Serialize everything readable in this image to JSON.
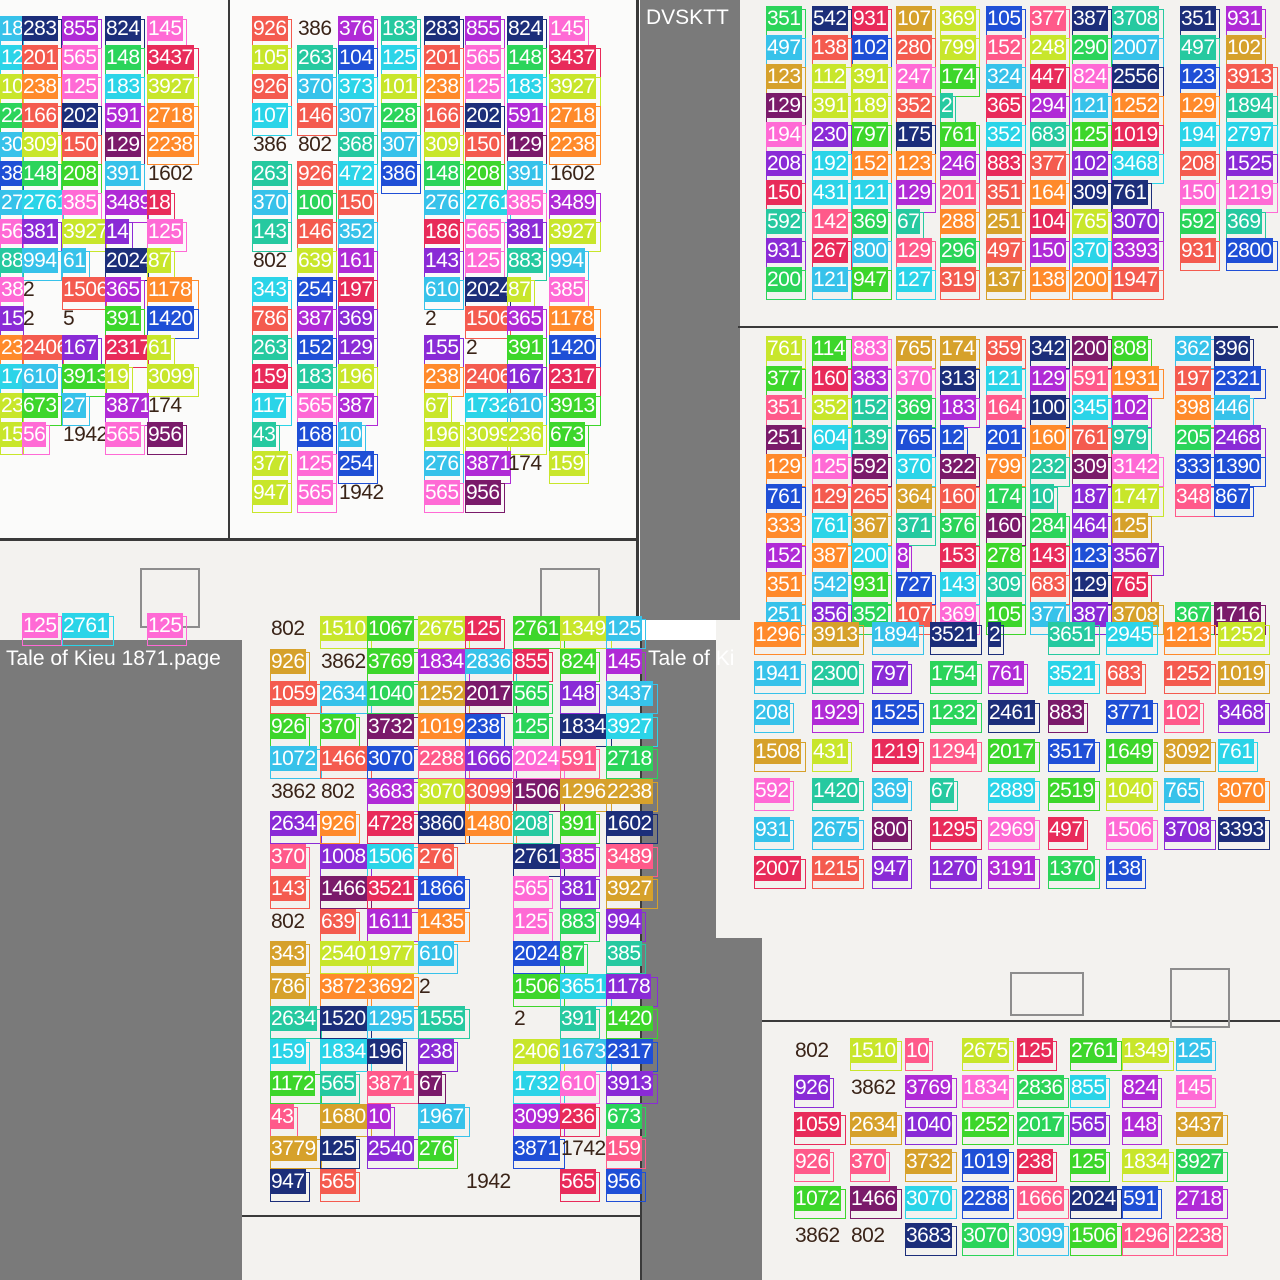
{
  "panes": {
    "top_left_title": "",
    "top_middle_title": "",
    "top_right_title": "DVSKTT",
    "bottom_left_title": "Tale of Kieu 1871.page",
    "bottom_right_title": "Tale of Ki"
  },
  "colors": {
    "bg_gray": "#7a7a7a",
    "paper": "#f3f2ef",
    "palette": [
      "#ff5a8a",
      "#f45b4f",
      "#37c2ea",
      "#b02bd6",
      "#1c2e7a",
      "#2bd4e8",
      "#8a2bd6",
      "#ff8a2b",
      "#c8e62b",
      "#2bd45a",
      "#ff6ad5",
      "#1f4fd6",
      "#7a1a6a",
      "#3dd62b",
      "#26c9a0",
      "#e82b5a",
      "#d6a12b"
    ]
  },
  "tiles": [
    {
      "pane": "top-left",
      "labels": [
        {
          "t": "18",
          "c": 2
        },
        {
          "t": "283",
          "c": 4
        },
        {
          "t": "855",
          "c": 3
        },
        {
          "t": "824",
          "c": 4
        },
        {
          "t": "145",
          "c": 10
        },
        {
          "t": "12",
          "c": 5
        },
        {
          "t": "201",
          "c": 1
        },
        {
          "t": "565",
          "c": 10
        },
        {
          "t": "148",
          "c": 9
        },
        {
          "t": "3437",
          "c": 15
        },
        {
          "t": "10",
          "c": 8
        },
        {
          "t": "238",
          "c": 7
        },
        {
          "t": "125",
          "c": 10
        },
        {
          "t": "183",
          "c": 5
        },
        {
          "t": "3927",
          "c": 8
        },
        {
          "t": "22",
          "c": 9
        },
        {
          "t": "166",
          "c": 1
        },
        {
          "t": "202",
          "c": 4
        },
        {
          "t": "591",
          "c": 3
        },
        {
          "t": "2718",
          "c": 7
        },
        {
          "t": "30",
          "c": 2
        },
        {
          "t": "309",
          "c": 8
        },
        {
          "t": "150",
          "c": 1
        },
        {
          "t": "129",
          "c": 12
        },
        {
          "t": "2238",
          "c": 7
        },
        {
          "t": "38",
          "c": 11
        },
        {
          "t": "148",
          "c": 9
        },
        {
          "t": "208",
          "c": 13
        },
        {
          "t": "391",
          "c": 2
        },
        {
          "t": "1602",
          "c": -1
        },
        {
          "t": "27",
          "c": 2
        },
        {
          "t": "2761",
          "c": 5
        },
        {
          "t": "385",
          "c": 10
        },
        {
          "t": "3489",
          "c": 3
        },
        {
          "t": "18",
          "c": 15
        },
        {
          "t": "565",
          "c": 10
        },
        {
          "t": "381",
          "c": 6
        },
        {
          "t": "3927",
          "c": 8
        },
        {
          "t": "14",
          "c": 6
        },
        {
          "t": "125",
          "c": 10
        },
        {
          "t": "883",
          "c": 14
        },
        {
          "t": "994",
          "c": 2
        },
        {
          "t": "61",
          "c": 2
        },
        {
          "t": "2024",
          "c": 4
        },
        {
          "t": "87",
          "c": 8
        },
        {
          "t": "385",
          "c": 10
        },
        {
          "t": "2",
          "c": -1
        },
        {
          "t": "1506",
          "c": 1
        },
        {
          "t": "365",
          "c": 3
        },
        {
          "t": "1178",
          "c": 7
        },
        {
          "t": "15",
          "c": 6
        },
        {
          "t": "2",
          "c": -1
        },
        {
          "t": "5",
          "c": -1
        },
        {
          "t": "391",
          "c": 13
        },
        {
          "t": "1420",
          "c": 11
        },
        {
          "t": "23",
          "c": 7
        },
        {
          "t": "2406",
          "c": 1
        },
        {
          "t": "167",
          "c": 6
        },
        {
          "t": "2317",
          "c": 15
        },
        {
          "t": "61",
          "c": 8
        },
        {
          "t": "1732",
          "c": 5
        },
        {
          "t": "610",
          "c": 2
        },
        {
          "t": "3913",
          "c": 13
        },
        {
          "t": "19",
          "c": 8
        },
        {
          "t": "3099",
          "c": 8
        },
        {
          "t": "236",
          "c": 8
        },
        {
          "t": "673",
          "c": 13
        },
        {
          "t": "27",
          "c": 2
        },
        {
          "t": "3871",
          "c": 3
        },
        {
          "t": "174",
          "c": -1
        },
        {
          "t": "159",
          "c": 8
        },
        {
          "t": "56",
          "c": 10
        },
        {
          "t": "1942",
          "c": -1
        },
        {
          "t": "565",
          "c": 10
        },
        {
          "t": "956",
          "c": 12
        },
        {
          "t": "125",
          "c": 10
        },
        {
          "t": "2761",
          "c": 5
        },
        {
          "t": "125",
          "c": 10
        }
      ]
    },
    {
      "pane": "top-middle",
      "labels": [
        {
          "t": "926",
          "c": 1
        },
        {
          "t": "386",
          "c": -1
        },
        {
          "t": "376",
          "c": 3
        },
        {
          "t": "183",
          "c": 14
        },
        {
          "t": "283",
          "c": 4
        },
        {
          "t": "855",
          "c": 3
        },
        {
          "t": "824",
          "c": 4
        },
        {
          "t": "145",
          "c": 10
        },
        {
          "t": "105",
          "c": 8
        },
        {
          "t": "263",
          "c": 14
        },
        {
          "t": "104",
          "c": 11
        },
        {
          "t": "125",
          "c": 5
        },
        {
          "t": "201",
          "c": 1
        },
        {
          "t": "565",
          "c": 10
        },
        {
          "t": "148",
          "c": 9
        },
        {
          "t": "3437",
          "c": 15
        },
        {
          "t": "926",
          "c": 1
        },
        {
          "t": "370",
          "c": 2
        },
        {
          "t": "373",
          "c": 5
        },
        {
          "t": "101",
          "c": 8
        },
        {
          "t": "238",
          "c": 7
        },
        {
          "t": "125",
          "c": 10
        },
        {
          "t": "183",
          "c": 5
        },
        {
          "t": "3927",
          "c": 8
        },
        {
          "t": "107",
          "c": 5
        },
        {
          "t": "146",
          "c": 1
        },
        {
          "t": "307",
          "c": 2
        },
        {
          "t": "228",
          "c": 9
        },
        {
          "t": "166",
          "c": 1
        },
        {
          "t": "202",
          "c": 4
        },
        {
          "t": "591",
          "c": 3
        },
        {
          "t": "2718",
          "c": 7
        },
        {
          "t": "386",
          "c": -1
        },
        {
          "t": "802",
          "c": -1
        },
        {
          "t": "368",
          "c": 14
        },
        {
          "t": "307",
          "c": 2
        },
        {
          "t": "309",
          "c": 8
        },
        {
          "t": "150",
          "c": 1
        },
        {
          "t": "129",
          "c": 12
        },
        {
          "t": "2238",
          "c": 7
        },
        {
          "t": "263",
          "c": 14
        },
        {
          "t": "926",
          "c": 1
        },
        {
          "t": "472",
          "c": 5
        },
        {
          "t": "386",
          "c": 11
        },
        {
          "t": "148",
          "c": 9
        },
        {
          "t": "208",
          "c": 13
        },
        {
          "t": "391",
          "c": 2
        },
        {
          "t": "1602",
          "c": -1
        },
        {
          "t": "370",
          "c": 2
        },
        {
          "t": "100",
          "c": 9
        },
        {
          "t": "150",
          "c": 1
        },
        {
          "t": "276",
          "c": 2
        },
        {
          "t": "2761",
          "c": 5
        },
        {
          "t": "385",
          "c": 10
        },
        {
          "t": "3489",
          "c": 3
        },
        {
          "t": "143",
          "c": 14
        },
        {
          "t": "146",
          "c": 1
        },
        {
          "t": "352",
          "c": 2
        },
        {
          "t": "186",
          "c": 15
        },
        {
          "t": "565",
          "c": 10
        },
        {
          "t": "381",
          "c": 6
        },
        {
          "t": "3927",
          "c": 8
        },
        {
          "t": "802",
          "c": -1
        },
        {
          "t": "639",
          "c": 8
        },
        {
          "t": "161",
          "c": 3
        },
        {
          "t": "143",
          "c": 6
        },
        {
          "t": "125",
          "c": 10
        },
        {
          "t": "883",
          "c": 14
        },
        {
          "t": "994",
          "c": 2
        },
        {
          "t": "343",
          "c": 5
        },
        {
          "t": "254",
          "c": 11
        },
        {
          "t": "197",
          "c": 15
        },
        {
          "t": "610",
          "c": 2
        },
        {
          "t": "2024",
          "c": 4
        },
        {
          "t": "87",
          "c": 8
        },
        {
          "t": "385",
          "c": 10
        },
        {
          "t": "786",
          "c": 1
        },
        {
          "t": "387",
          "c": 3
        },
        {
          "t": "369",
          "c": 6
        },
        {
          "t": "2",
          "c": -1
        },
        {
          "t": "1506",
          "c": 1
        },
        {
          "t": "365",
          "c": 3
        },
        {
          "t": "1178",
          "c": 7
        },
        {
          "t": "263",
          "c": 14
        },
        {
          "t": "152",
          "c": 11
        },
        {
          "t": "129",
          "c": 6
        },
        {
          "t": "155",
          "c": 6
        },
        {
          "t": "2",
          "c": -1
        },
        {
          "t": "391",
          "c": 13
        },
        {
          "t": "1420",
          "c": 11
        },
        {
          "t": "159",
          "c": 15
        },
        {
          "t": "183",
          "c": 14
        },
        {
          "t": "196",
          "c": 8
        },
        {
          "t": "238",
          "c": 7
        },
        {
          "t": "2406",
          "c": 1
        },
        {
          "t": "167",
          "c": 6
        },
        {
          "t": "2317",
          "c": 15
        },
        {
          "t": "117",
          "c": 5
        },
        {
          "t": "565",
          "c": 10
        },
        {
          "t": "387",
          "c": 3
        },
        {
          "t": "67",
          "c": 8
        },
        {
          "t": "1732",
          "c": 5
        },
        {
          "t": "610",
          "c": 2
        },
        {
          "t": "3913",
          "c": 13
        },
        {
          "t": "43",
          "c": 14
        },
        {
          "t": "168",
          "c": 11
        },
        {
          "t": "10",
          "c": 2
        },
        {
          "t": "196",
          "c": 8
        },
        {
          "t": "3099",
          "c": 8
        },
        {
          "t": "236",
          "c": 8
        },
        {
          "t": "673",
          "c": 13
        },
        {
          "t": "377",
          "c": 8
        },
        {
          "t": "125",
          "c": 10
        },
        {
          "t": "254",
          "c": 11
        },
        {
          "t": "276",
          "c": 2
        },
        {
          "t": "3871",
          "c": 3
        },
        {
          "t": "174",
          "c": -1
        },
        {
          "t": "159",
          "c": 8
        },
        {
          "t": "947",
          "c": 8
        },
        {
          "t": "565",
          "c": 10
        },
        {
          "t": "1942",
          "c": -1
        },
        {
          "t": "565",
          "c": 10
        },
        {
          "t": "956",
          "c": 12
        }
      ]
    }
  ],
  "right_top_labels": [
    [
      "351",
      "542",
      "931",
      "107",
      "369",
      "105",
      "377",
      "387",
      "3708",
      "351",
      "931"
    ],
    [
      "497",
      "138",
      "102",
      "280",
      "799",
      "152",
      "248",
      "290",
      "2007",
      "497",
      "102"
    ],
    [
      "123",
      "112",
      "391",
      "247",
      "174",
      "324",
      "447",
      "824",
      "2556",
      "123",
      "3913"
    ],
    [
      "129",
      "391",
      "189",
      "352",
      "2",
      "365",
      "294",
      "121",
      "1252",
      "129",
      "1894"
    ],
    [
      "194",
      "230",
      "797",
      "175",
      "761",
      "352",
      "683",
      "125",
      "1019",
      "194",
      "2797"
    ],
    [
      "208",
      "192",
      "152",
      "123",
      "246",
      "883",
      "377",
      "102",
      "3468",
      "208",
      "1525"
    ],
    [
      "150",
      "431",
      "121",
      "129",
      "201",
      "351",
      "164",
      "309",
      "761",
      "150",
      "1219"
    ],
    [
      "592",
      "142",
      "369",
      "67",
      "288",
      "251",
      "104",
      "765",
      "3070",
      "592",
      "369"
    ],
    [
      "931",
      "267",
      "800",
      "129",
      "296",
      "497",
      "150",
      "370",
      "3393",
      "931",
      "2800"
    ],
    [
      "200",
      "121",
      "947",
      "127",
      "319",
      "137",
      "138",
      "200",
      "1947"
    ]
  ],
  "right_mid_labels": [
    [
      "761",
      "114",
      "883",
      "765",
      "174",
      "359",
      "342",
      "200",
      "808",
      "362",
      "396"
    ],
    [
      "377",
      "160",
      "383",
      "370",
      "313",
      "121",
      "129",
      "591",
      "1931",
      "197",
      "2321"
    ],
    [
      "351",
      "352",
      "152",
      "369",
      "183",
      "164",
      "100",
      "345",
      "102",
      "398",
      "446"
    ],
    [
      "251",
      "604",
      "139",
      "765",
      "12",
      "201",
      "160",
      "761",
      "979",
      "205",
      "2468"
    ],
    [
      "129",
      "125",
      "592",
      "370",
      "322",
      "799",
      "232",
      "309",
      "3142",
      "333",
      "1390"
    ],
    [
      "761",
      "129",
      "265",
      "364",
      "160",
      "174",
      "10",
      "187",
      "1747",
      "348",
      "867"
    ],
    [
      "333",
      "761",
      "367",
      "371",
      "376",
      "160",
      "284",
      "464",
      "125"
    ],
    [
      "152",
      "387",
      "200",
      "8",
      "153",
      "278",
      "143",
      "123",
      "3567"
    ],
    [
      "351",
      "542",
      "931",
      "727",
      "143",
      "309",
      "683",
      "129",
      "765"
    ],
    [
      "251",
      "356",
      "352",
      "107",
      "369",
      "105",
      "377",
      "387",
      "3708",
      "367",
      "1716"
    ]
  ],
  "bottom_right_labels": [
    [
      "1296",
      "3913",
      "1894",
      "3521",
      "2",
      "3651",
      "2945",
      "1213",
      "1252"
    ],
    [
      "1941",
      "2300",
      "797",
      "1754",
      "761",
      "3521",
      "683",
      "1252",
      "1019"
    ],
    [
      "208",
      "1929",
      "1525",
      "1232",
      "2461",
      "883",
      "3771",
      "102",
      "3468"
    ],
    [
      "1508",
      "431",
      "1219",
      "1294",
      "2017",
      "3517",
      "1649",
      "3092",
      "761"
    ],
    [
      "592",
      "1420",
      "369",
      "67",
      "2889",
      "2519",
      "1040",
      "765",
      "3070"
    ],
    [
      "931",
      "2675",
      "800",
      "1295",
      "2969",
      "497",
      "1506",
      "3708",
      "3393"
    ],
    [
      "2007",
      "1215",
      "947",
      "1270",
      "3191",
      "1370",
      "138"
    ]
  ],
  "bottom_left_labels": [
    [
      "802",
      "1510",
      "1067",
      "2675",
      "125",
      "2761",
      "1349",
      "125"
    ],
    [
      "926",
      "3862",
      "3769",
      "1834",
      "2836",
      "855",
      "824",
      "145"
    ],
    [
      "1059",
      "2634",
      "1040",
      "1252",
      "2017",
      "565",
      "148",
      "3437"
    ],
    [
      "926",
      "370",
      "3732",
      "1019",
      "238",
      "125",
      "1834",
      "3927"
    ],
    [
      "1072",
      "1466",
      "3070",
      "2288",
      "1666",
      "2024",
      "591",
      "2718"
    ],
    [
      "3862",
      "802",
      "3683",
      "3070",
      "3099",
      "1506",
      "1296",
      "2238"
    ],
    [
      "2634",
      "926",
      "4728",
      "3860",
      "1480",
      "208",
      "391",
      "1602"
    ],
    [
      "370",
      "1008",
      "1506",
      "276",
      "2761",
      "385",
      "3489"
    ],
    [
      "143",
      "1466",
      "3521",
      "1866",
      "565",
      "381",
      "3927"
    ],
    [
      "802",
      "639",
      "1611",
      "1435",
      "125",
      "883",
      "994"
    ],
    [
      "343",
      "2540",
      "1977",
      "610",
      "2024",
      "87",
      "385"
    ],
    [
      "786",
      "3872",
      "3692",
      "2",
      "1506",
      "3651",
      "1178"
    ],
    [
      "2634",
      "1520",
      "1295",
      "1555",
      "2",
      "391",
      "1420"
    ],
    [
      "159",
      "1834",
      "196",
      "238",
      "2406",
      "1673",
      "2317"
    ],
    [
      "1172",
      "565",
      "3871",
      "67",
      "1732",
      "610",
      "3913"
    ],
    [
      "43",
      "1680",
      "10",
      "1967",
      "3099",
      "236",
      "673"
    ],
    [
      "3779",
      "125",
      "2540",
      "276",
      "3871",
      "1742",
      "159"
    ],
    [
      "947",
      "565",
      "1942",
      "565",
      "956"
    ]
  ],
  "bottom_far_right_labels": [
    [
      "802",
      "1510",
      "10",
      "2675",
      "125",
      "2761",
      "1349",
      "125"
    ],
    [
      "926",
      "3862",
      "3769",
      "1834",
      "2836",
      "855",
      "824",
      "145"
    ],
    [
      "1059",
      "2634",
      "1040",
      "1252",
      "2017",
      "565",
      "148",
      "3437"
    ],
    [
      "926",
      "370",
      "3732",
      "1019",
      "238",
      "125",
      "1834",
      "3927"
    ],
    [
      "1072",
      "1466",
      "3070",
      "2288",
      "1666",
      "2024",
      "591",
      "2718"
    ],
    [
      "3862",
      "802",
      "3683",
      "3070",
      "3099",
      "1506",
      "1296",
      "2238"
    ]
  ]
}
